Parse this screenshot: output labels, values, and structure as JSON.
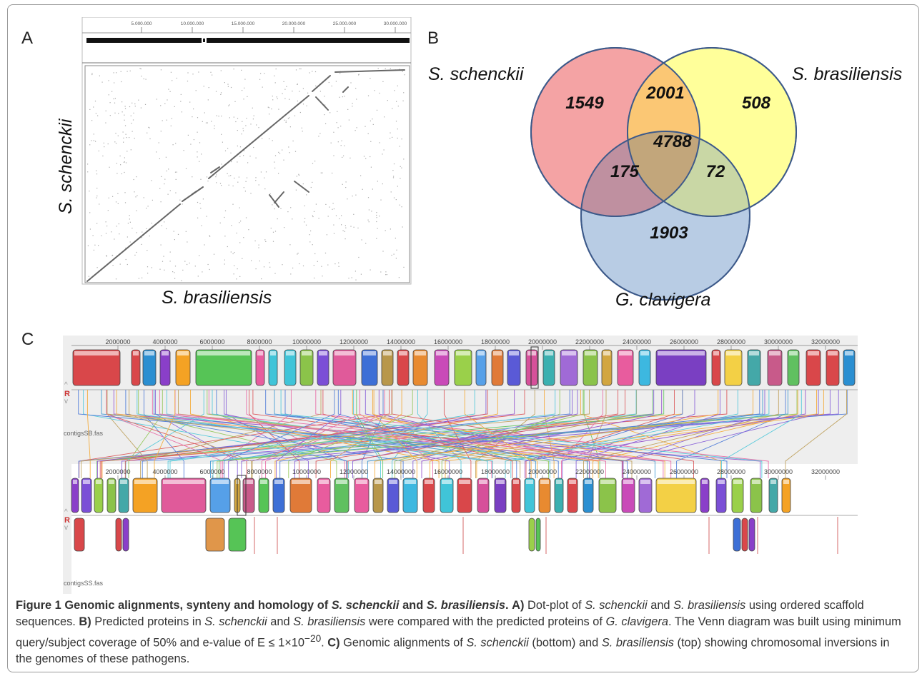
{
  "panels": {
    "a": "A",
    "b": "B",
    "c": "C"
  },
  "dotplot": {
    "ticks": [
      "5.000.000",
      "10.000.000",
      "15.000.000",
      "20.000.000",
      "25.000.000",
      "30.000.000"
    ],
    "x_title": "S. brasiliensis",
    "y_title": "S. schenckii"
  },
  "venn": {
    "sets": [
      {
        "name": "S. schenckii",
        "color": "#f4a3a4"
      },
      {
        "name": "S. brasiliensis",
        "color": "#ffff9a"
      },
      {
        "name": "G. clavigera",
        "color": "#b8cce4"
      }
    ],
    "regions": {
      "schenckii_only": "1549",
      "schenckii_brasiliensis": "2001",
      "brasiliensis_only": "508",
      "all_three": "4788",
      "schenckii_clavigera": "175",
      "brasiliensis_clavigera": "72",
      "clavigera_only": "1903"
    }
  },
  "mauve": {
    "top_ticks": [
      "2000000",
      "4000000",
      "6000000",
      "8000000",
      "10000000",
      "12000000",
      "14000000",
      "16000000",
      "18000000",
      "20000000",
      "22000000",
      "24000000",
      "26000000",
      "28000000",
      "30000000",
      "32000000"
    ],
    "bottom_ticks": [
      "2000000",
      "4000000",
      "6000000",
      "8000000",
      "10000000",
      "12000000",
      "14000000",
      "16000000",
      "18000000",
      "20000000",
      "22000000",
      "24000000",
      "26000000",
      "28000000",
      "30000000",
      "32000000"
    ],
    "top_file": "contigsSB.fas",
    "bottom_file": "contigsSS.fas",
    "reverse_label": "R"
  },
  "caption": {
    "figure_label": "Figure 1",
    "title_pre": "Genomic alignments, synteny and homology of",
    "sp1": "S. schenckii",
    "and": "and",
    "sp2": "S. brasiliensis",
    "a_label": "A)",
    "a_text1": "Dot-plot of",
    "a_text2": "and",
    "a_text3": "using ordered scaffold sequences.",
    "b_label": "B)",
    "b_text1": "Predicted proteins in",
    "b_text2": "and",
    "b_text3": "were compared with the predicted proteins of",
    "sp3": "G. clavigera",
    "b_text4": ". The Venn diagram was built using minimum query/subject coverage of 50% and e-value of E ≤ 1×10",
    "b_exp": "−20",
    "c_label": "C)",
    "c_text1": "Genomic alignments of",
    "c_text2": "(bottom) and",
    "c_text3": "(top) showing chromosomal inversions in the genomes of these pathogens."
  }
}
